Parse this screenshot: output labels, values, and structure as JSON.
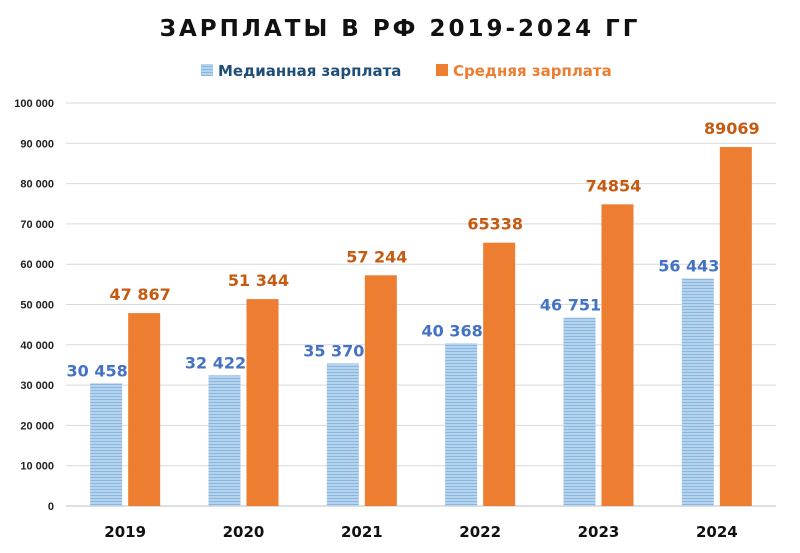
{
  "chart_data": {
    "type": "bar",
    "title": "ЗАРПЛАТЫ В РФ 2019-2024 ГГ",
    "categories": [
      "2019",
      "2020",
      "2021",
      "2022",
      "2023",
      "2024"
    ],
    "series": [
      {
        "name": "Медианная зарплата",
        "values": [
          30458,
          32422,
          35370,
          40368,
          46751,
          56443
        ],
        "labels": [
          "30 458",
          "32 422",
          "35 370",
          "40 368",
          "46 751",
          "56 443"
        ],
        "color": "#9DC3E6",
        "label_color": "#4472C4",
        "legend_color": "#1F4E79"
      },
      {
        "name": "Средняя зарплата",
        "values": [
          47867,
          51344,
          57244,
          65338,
          74854,
          89069
        ],
        "labels": [
          "47 867",
          "51 344",
          "57 244",
          "65338",
          "74854",
          "89069"
        ],
        "color": "#ED7D31",
        "label_color": "#C55A11",
        "legend_color": "#ED7D31"
      }
    ],
    "ylim": [
      0,
      100000
    ],
    "ytick_step": 10000,
    "ytick_labels": [
      "0",
      "10 000",
      "20 000",
      "30 000",
      "40 000",
      "50 000",
      "60 000",
      "70 000",
      "80 000",
      "90 000",
      "100 000"
    ],
    "xlabel": "",
    "ylabel": "",
    "grid": true,
    "legend_position": "top-center"
  }
}
